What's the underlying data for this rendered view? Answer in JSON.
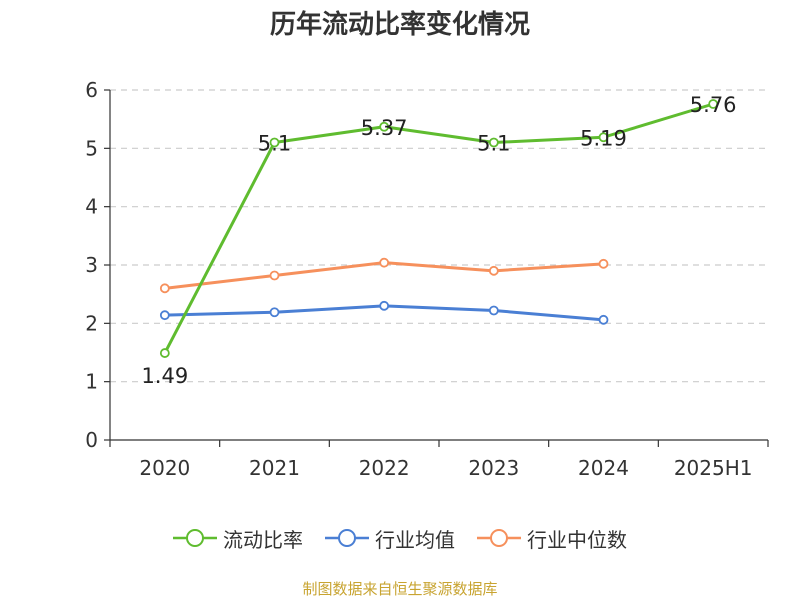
{
  "chart_data": {
    "type": "line",
    "title": "历年流动比率变化情况",
    "categories": [
      "2020",
      "2021",
      "2022",
      "2023",
      "2024",
      "2025H1"
    ],
    "ylim": [
      0,
      6
    ],
    "yticks": [
      0,
      1,
      2,
      3,
      4,
      5,
      6
    ],
    "grid": true,
    "legend_position": "bottom",
    "series": [
      {
        "name": "流动比率",
        "color": "#5fbc2f",
        "labels": true,
        "values": [
          1.49,
          5.1,
          5.37,
          5.1,
          5.19,
          5.76
        ]
      },
      {
        "name": "行业均值",
        "color": "#4a7fd4",
        "labels": false,
        "values": [
          2.14,
          2.19,
          2.3,
          2.22,
          2.06,
          null
        ]
      },
      {
        "name": "行业中位数",
        "color": "#f6905c",
        "labels": false,
        "values": [
          2.6,
          2.82,
          3.04,
          2.9,
          3.02,
          null
        ]
      }
    ]
  },
  "source_note": "制图数据来自恒生聚源数据库"
}
